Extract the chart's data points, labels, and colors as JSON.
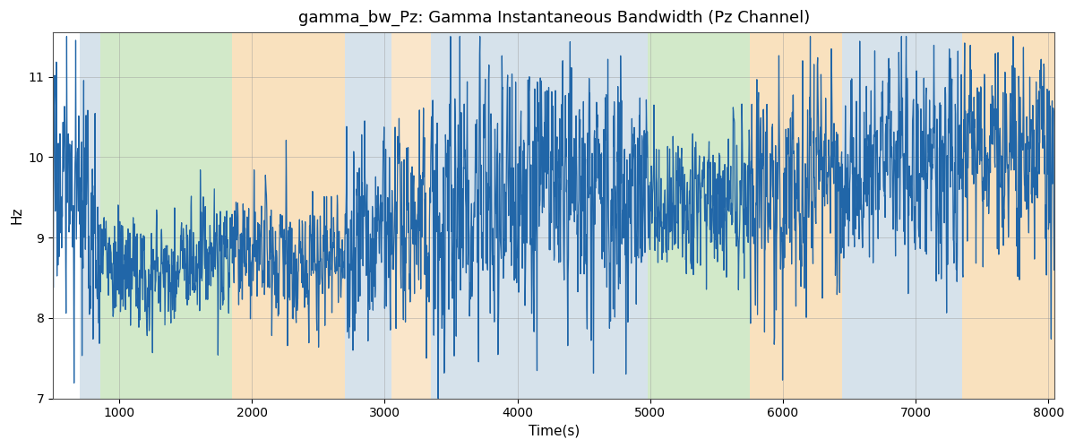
{
  "title": "gamma_bw_Pz: Gamma Instantaneous Bandwidth (Pz Channel)",
  "xlabel": "Time(s)",
  "ylabel": "Hz",
  "xlim": [
    500,
    8050
  ],
  "ylim": [
    7.0,
    11.55
  ],
  "xticks": [
    1000,
    2000,
    3000,
    4000,
    5000,
    6000,
    7000,
    8000
  ],
  "yticks": [
    7,
    8,
    9,
    10,
    11
  ],
  "line_color": "#2166a8",
  "line_width": 0.9,
  "background_color": "#ffffff",
  "grid_color": "#999999",
  "title_fontsize": 13,
  "axis_label_fontsize": 11,
  "bands": [
    {
      "xmin": 700,
      "xmax": 855,
      "color": "#aec6d8",
      "alpha": 0.5
    },
    {
      "xmin": 855,
      "xmax": 1850,
      "color": "#90c878",
      "alpha": 0.4
    },
    {
      "xmin": 1850,
      "xmax": 2700,
      "color": "#f5c98a",
      "alpha": 0.55
    },
    {
      "xmin": 2700,
      "xmax": 3050,
      "color": "#aec6d8",
      "alpha": 0.5
    },
    {
      "xmin": 3050,
      "xmax": 3350,
      "color": "#f5c98a",
      "alpha": 0.45
    },
    {
      "xmin": 3350,
      "xmax": 4800,
      "color": "#aec6d8",
      "alpha": 0.5
    },
    {
      "xmin": 4800,
      "xmax": 4980,
      "color": "#aec6d8",
      "alpha": 0.5
    },
    {
      "xmin": 4980,
      "xmax": 5750,
      "color": "#90c878",
      "alpha": 0.4
    },
    {
      "xmin": 5750,
      "xmax": 6450,
      "color": "#f5c98a",
      "alpha": 0.55
    },
    {
      "xmin": 6450,
      "xmax": 7350,
      "color": "#aec6d8",
      "alpha": 0.5
    },
    {
      "xmin": 7350,
      "xmax": 8100,
      "color": "#f5c98a",
      "alpha": 0.55
    }
  ],
  "seed": 17,
  "n_points": 3000,
  "t_start": 500,
  "t_end": 8050
}
